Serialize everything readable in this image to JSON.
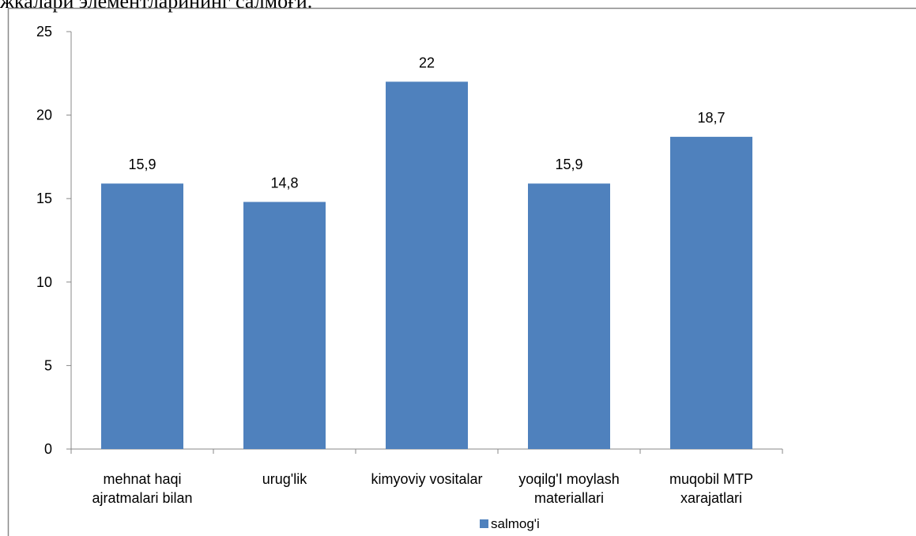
{
  "chart_data": {
    "type": "bar",
    "title": "жкалари элементларининг салмоғи.",
    "categories": [
      "mehnat haqi ajratmalari bilan",
      "urug'lik",
      "kimyoviy vositalar",
      "yoqilg'I moylash materiallari",
      "muqobil MTP xarajatlari"
    ],
    "series": [
      {
        "name": "salmog'i",
        "color": "#4f81bd",
        "values": [
          15.9,
          14.8,
          22,
          15.9,
          18.7
        ],
        "value_labels": [
          "15,9",
          "14,8",
          "22",
          "15,9",
          "18,7"
        ]
      }
    ],
    "ylim": [
      0,
      25
    ],
    "yticks": [
      0,
      5,
      10,
      15,
      20,
      25
    ],
    "grid": false,
    "legend": "bottom"
  }
}
